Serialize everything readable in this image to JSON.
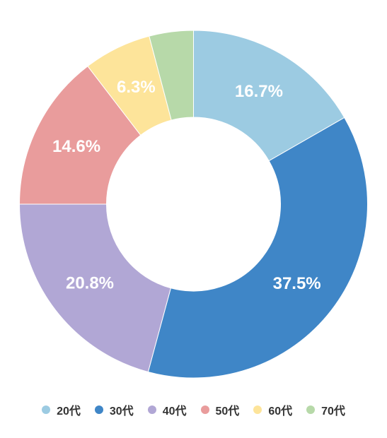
{
  "chart_data": {
    "type": "pie",
    "donut": true,
    "title": "",
    "legend_position": "bottom",
    "slices": [
      {
        "name": "20代",
        "value": 16.7,
        "label": "16.7%",
        "color": "#9ccbe2"
      },
      {
        "name": "30代",
        "value": 37.5,
        "label": "37.5%",
        "color": "#3f86c7"
      },
      {
        "name": "40代",
        "value": 20.8,
        "label": "20.8%",
        "color": "#b1a7d5"
      },
      {
        "name": "50代",
        "value": 14.6,
        "label": "14.6%",
        "color": "#e99c9c"
      },
      {
        "name": "60代",
        "value": 6.3,
        "label": "6.3%",
        "color": "#fde49a"
      },
      {
        "name": "70代",
        "value": 4.1,
        "label": "",
        "color": "#b7d9a9"
      }
    ]
  }
}
